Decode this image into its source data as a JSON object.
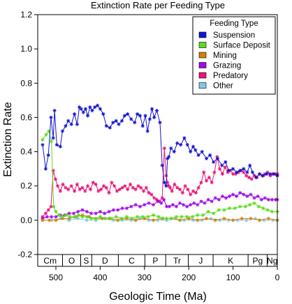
{
  "chart_data": {
    "type": "line",
    "title": "Extinction Rate per Feeding Type",
    "xlabel": "Geologic Time (Ma)",
    "ylabel": "Extinction Rate",
    "xlim": [
      541,
      0
    ],
    "ylim": [
      -0.2,
      1.2
    ],
    "x_ticks": [
      500,
      400,
      300,
      200,
      100,
      0
    ],
    "y_ticks": [
      -0.2,
      0.0,
      0.2,
      0.4,
      0.6,
      0.8,
      1.0,
      1.2
    ],
    "legend": {
      "title": "Feeding Type",
      "placement": "top-right"
    },
    "periods": [
      {
        "label": "Cm",
        "start": 541,
        "end": 485
      },
      {
        "label": "O",
        "start": 485,
        "end": 444
      },
      {
        "label": "S",
        "start": 444,
        "end": 419
      },
      {
        "label": "D",
        "start": 419,
        "end": 359
      },
      {
        "label": "C",
        "start": 359,
        "end": 299
      },
      {
        "label": "P",
        "start": 299,
        "end": 252
      },
      {
        "label": "Tr",
        "start": 252,
        "end": 201
      },
      {
        "label": "J",
        "start": 201,
        "end": 145
      },
      {
        "label": "K",
        "start": 145,
        "end": 66
      },
      {
        "label": "Pg",
        "start": 66,
        "end": 23
      },
      {
        "label": "Ng",
        "start": 23,
        "end": 0
      }
    ],
    "series": [
      {
        "name": "Suspension",
        "color": "#1414d2",
        "x": [
          530,
          523,
          517,
          511,
          506,
          503,
          498,
          490,
          485,
          478,
          472,
          465,
          458,
          452,
          447,
          443,
          438,
          433,
          428,
          423,
          418,
          412,
          406,
          400,
          393,
          386,
          378,
          371,
          364,
          358,
          351,
          345,
          338,
          330,
          322,
          316,
          310,
          304,
          298,
          293,
          288,
          283,
          278,
          272,
          265,
          260,
          255,
          251,
          248,
          245,
          240,
          233,
          226,
          218,
          210,
          203,
          196,
          190,
          185,
          178,
          170,
          160,
          152,
          144,
          135,
          125,
          117,
          110,
          100,
          92,
          84,
          76,
          68,
          62,
          56,
          48,
          40,
          32,
          24,
          16,
          8,
          0
        ],
        "y": [
          0.44,
          0.3,
          0.38,
          0.6,
          0.48,
          0.64,
          0.44,
          0.43,
          0.52,
          0.55,
          0.58,
          0.56,
          0.62,
          0.56,
          0.66,
          0.65,
          0.63,
          0.65,
          0.61,
          0.66,
          0.64,
          0.66,
          0.67,
          0.65,
          0.62,
          0.55,
          0.54,
          0.57,
          0.58,
          0.56,
          0.58,
          0.61,
          0.62,
          0.59,
          0.57,
          0.62,
          0.61,
          0.55,
          0.61,
          0.52,
          0.59,
          0.65,
          0.6,
          0.64,
          0.57,
          0.32,
          0.22,
          0.2,
          0.36,
          0.37,
          0.42,
          0.4,
          0.45,
          0.44,
          0.48,
          0.44,
          0.4,
          0.43,
          0.41,
          0.38,
          0.4,
          0.36,
          0.38,
          0.34,
          0.36,
          0.32,
          0.34,
          0.29,
          0.3,
          0.28,
          0.29,
          0.3,
          0.28,
          0.32,
          0.28,
          0.25,
          0.27,
          0.26,
          0.27,
          0.27,
          0.27,
          0.26
        ]
      },
      {
        "name": "Surface Deposit",
        "color": "#5adc1e",
        "x": [
          530,
          522,
          516,
          510,
          505,
          500,
          493,
          485,
          477,
          468,
          458,
          449,
          440,
          430,
          420,
          410,
          400,
          388,
          376,
          364,
          352,
          340,
          328,
          316,
          304,
          292,
          280,
          268,
          258,
          250,
          240,
          228,
          216,
          204,
          192,
          180,
          168,
          156,
          144,
          132,
          120,
          108,
          96,
          84,
          72,
          62,
          52,
          42,
          32,
          22,
          12,
          0
        ],
        "y": [
          0.47,
          0.5,
          0.52,
          0.46,
          0.08,
          0.05,
          0.03,
          0.02,
          0.03,
          0.02,
          0.02,
          0.03,
          0.02,
          0.02,
          0.01,
          0.01,
          0.02,
          0.01,
          0.01,
          0.02,
          0.01,
          0.02,
          0.01,
          0.02,
          0.02,
          0.02,
          0.03,
          0.02,
          0.01,
          0.01,
          0.01,
          0.02,
          0.02,
          0.02,
          0.02,
          0.03,
          0.03,
          0.05,
          0.04,
          0.06,
          0.06,
          0.07,
          0.07,
          0.08,
          0.08,
          0.09,
          0.1,
          0.08,
          0.07,
          0.06,
          0.05,
          0.05
        ]
      },
      {
        "name": "Mining",
        "color": "#d2800a",
        "x": [
          530,
          515,
          500,
          485,
          470,
          455,
          440,
          425,
          410,
          395,
          380,
          360,
          340,
          320,
          300,
          280,
          260,
          240,
          220,
          200,
          180,
          160,
          140,
          120,
          100,
          80,
          60,
          40,
          20,
          0
        ],
        "y": [
          0.0,
          0.0,
          0.0,
          0.01,
          0.01,
          0.02,
          0.03,
          0.02,
          0.01,
          0.01,
          0.01,
          0.0,
          0.01,
          0.0,
          0.01,
          0.0,
          0.01,
          0.01,
          0.0,
          0.01,
          0.0,
          0.01,
          0.0,
          0.01,
          0.0,
          0.01,
          0.01,
          0.0,
          0.01,
          0.0
        ]
      },
      {
        "name": "Grazing",
        "color": "#a00ae6",
        "x": [
          530,
          520,
          510,
          500,
          490,
          480,
          470,
          460,
          450,
          440,
          430,
          420,
          410,
          400,
          390,
          380,
          370,
          360,
          350,
          340,
          330,
          320,
          310,
          300,
          290,
          280,
          270,
          262,
          256,
          250,
          244,
          236,
          228,
          220,
          212,
          204,
          196,
          188,
          180,
          172,
          164,
          156,
          148,
          140,
          132,
          124,
          116,
          108,
          100,
          92,
          84,
          76,
          68,
          60,
          52,
          44,
          36,
          28,
          20,
          12,
          4,
          0
        ],
        "y": [
          0.01,
          0.02,
          0.02,
          0.02,
          0.03,
          0.03,
          0.04,
          0.04,
          0.05,
          0.06,
          0.05,
          0.04,
          0.04,
          0.05,
          0.04,
          0.05,
          0.06,
          0.06,
          0.07,
          0.07,
          0.08,
          0.09,
          0.08,
          0.09,
          0.1,
          0.09,
          0.11,
          0.1,
          0.12,
          0.08,
          0.08,
          0.09,
          0.08,
          0.1,
          0.09,
          0.08,
          0.09,
          0.1,
          0.09,
          0.11,
          0.1,
          0.12,
          0.11,
          0.13,
          0.12,
          0.14,
          0.13,
          0.14,
          0.15,
          0.14,
          0.16,
          0.15,
          0.14,
          0.15,
          0.13,
          0.14,
          0.12,
          0.13,
          0.12,
          0.12,
          0.12,
          0.12
        ]
      },
      {
        "name": "Predatory",
        "color": "#eb1478",
        "x": [
          530,
          523,
          517,
          511,
          506,
          501,
          496,
          490,
          484,
          478,
          472,
          465,
          458,
          452,
          446,
          440,
          434,
          428,
          422,
          416,
          410,
          404,
          398,
          392,
          386,
          380,
          374,
          368,
          362,
          356,
          350,
          344,
          338,
          332,
          326,
          320,
          314,
          308,
          302,
          296,
          290,
          284,
          278,
          272,
          266,
          260,
          255,
          251,
          248,
          245,
          242,
          238,
          232,
          226,
          220,
          214,
          208,
          202,
          196,
          190,
          184,
          178,
          172,
          166,
          160,
          154,
          148,
          142,
          136,
          130,
          124,
          118,
          112,
          106,
          100,
          94,
          88,
          82,
          76,
          70,
          64,
          58,
          52,
          46,
          40,
          34,
          28,
          22,
          16,
          10,
          4,
          0
        ],
        "y": [
          0.02,
          0.04,
          0.06,
          0.08,
          0.29,
          0.24,
          0.2,
          0.17,
          0.21,
          0.19,
          0.18,
          0.2,
          0.17,
          0.21,
          0.18,
          0.19,
          0.17,
          0.2,
          0.18,
          0.22,
          0.21,
          0.17,
          0.18,
          0.2,
          0.19,
          0.16,
          0.22,
          0.2,
          0.17,
          0.18,
          0.19,
          0.2,
          0.18,
          0.21,
          0.19,
          0.18,
          0.2,
          0.19,
          0.17,
          0.19,
          0.16,
          0.15,
          0.13,
          0.12,
          0.11,
          0.13,
          0.42,
          0.26,
          0.22,
          0.2,
          0.19,
          0.17,
          0.21,
          0.19,
          0.18,
          0.16,
          0.2,
          0.18,
          0.15,
          0.17,
          0.16,
          0.19,
          0.22,
          0.28,
          0.23,
          0.25,
          0.22,
          0.28,
          0.37,
          0.3,
          0.27,
          0.31,
          0.28,
          0.29,
          0.27,
          0.27,
          0.28,
          0.29,
          0.28,
          0.26,
          0.25,
          0.24,
          0.26,
          0.25,
          0.27,
          0.26,
          0.27,
          0.28,
          0.26,
          0.27,
          0.27,
          0.27
        ]
      },
      {
        "name": "Other",
        "color": "#82c8ee",
        "x": [
          530,
          510,
          490,
          470,
          450,
          430,
          410,
          390,
          370,
          350,
          330,
          310,
          290,
          270,
          250,
          230,
          210,
          190,
          170,
          150,
          130,
          110,
          90,
          70,
          50,
          30,
          10,
          0
        ],
        "y": [
          0.0,
          0.0,
          0.01,
          0.0,
          0.01,
          0.0,
          0.0,
          0.01,
          0.0,
          0.0,
          0.0,
          0.01,
          0.0,
          0.0,
          0.0,
          0.01,
          0.0,
          0.0,
          0.0,
          0.01,
          0.0,
          0.0,
          0.0,
          0.0,
          0.01,
          0.0,
          0.0,
          0.0
        ]
      }
    ]
  }
}
